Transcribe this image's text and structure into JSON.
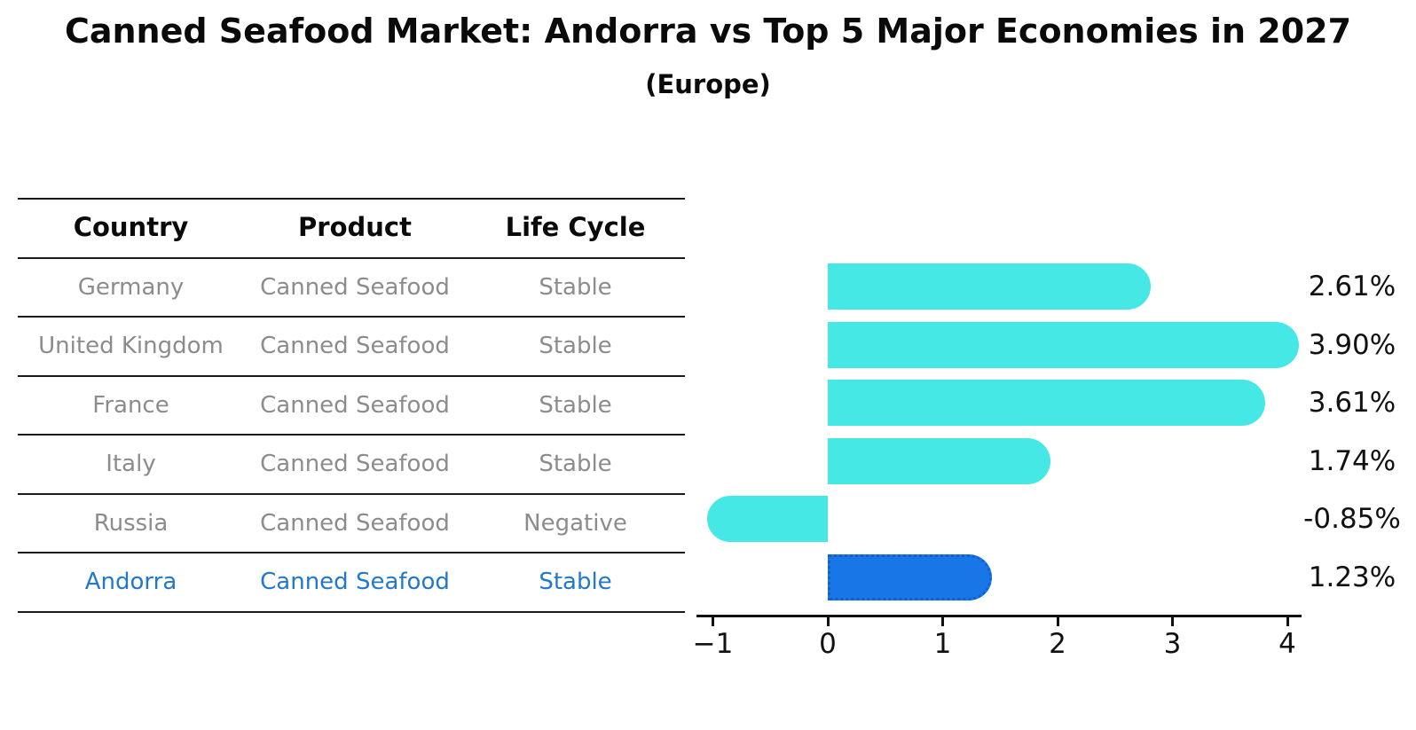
{
  "header": {
    "title": "Canned Seafood Market: Andorra vs Top 5 Major Economies in 2027",
    "subtitle": "(Europe)"
  },
  "table": {
    "columns": [
      "Country",
      "Product",
      "Life Cycle"
    ],
    "rows": [
      {
        "country": "Germany",
        "product": "Canned Seafood",
        "life_cycle": "Stable"
      },
      {
        "country": "United Kingdom",
        "product": "Canned Seafood",
        "life_cycle": "Stable"
      },
      {
        "country": "France",
        "product": "Canned Seafood",
        "life_cycle": "Stable"
      },
      {
        "country": "Italy",
        "product": "Canned Seafood",
        "life_cycle": "Stable"
      },
      {
        "country": "Russia",
        "product": "Canned Seafood",
        "life_cycle": "Negative"
      },
      {
        "country": "Andorra",
        "product": "Canned Seafood",
        "life_cycle": "Stable"
      }
    ],
    "highlight_row": "Andorra"
  },
  "chart_data": {
    "type": "bar",
    "orientation": "horizontal",
    "title": "Canned Seafood Market: Andorra vs Top 5 Major Economies in 2027",
    "subtitle": "(Europe)",
    "categories": [
      "Germany",
      "United Kingdom",
      "France",
      "Italy",
      "Russia",
      "Andorra"
    ],
    "values": [
      2.61,
      3.9,
      3.61,
      1.74,
      -0.85,
      1.23
    ],
    "value_labels": [
      "2.61%",
      "3.90%",
      "3.61%",
      "1.74%",
      "-0.85%",
      "1.23%"
    ],
    "xticks": [
      -1,
      0,
      1,
      2,
      3,
      4
    ],
    "xlim": [
      -1.15,
      4.12
    ],
    "grid": false,
    "legend": null,
    "highlight_index": 5,
    "colors": {
      "bar_default": "#46E8E6",
      "bar_highlight": "#1976E6",
      "bar_highlight_border": "#0F5FD7",
      "highlight_text": "#2278CC",
      "table_text": "#8C8C8C",
      "axis": "#111111"
    }
  }
}
